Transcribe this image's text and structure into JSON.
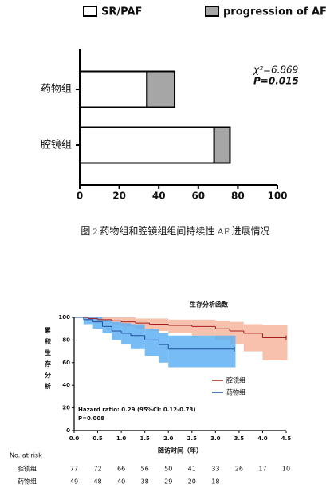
{
  "chart_data": [
    {
      "type": "bar",
      "orientation": "horizontal",
      "stacked": true,
      "categories": [
        "药物组",
        "腔镜组"
      ],
      "series": [
        {
          "name": "SR/PAF",
          "color": "#ffffff",
          "values": [
            34,
            68
          ]
        },
        {
          "name": "progression of AF",
          "color": "#a6a6a6",
          "values": [
            14,
            8
          ]
        }
      ],
      "xlim": [
        0,
        100
      ],
      "xticks": [
        0,
        20,
        40,
        60,
        80,
        100
      ],
      "annotations": [
        "χ²=6.869",
        "P=0.015"
      ],
      "caption": "图 2  药物组和腔镜组组间持续性 AF 进展情况"
    },
    {
      "type": "survival",
      "title": "生存分析函数",
      "y_label": "累积生存分析",
      "x_label": "随访时间（年）",
      "xlim": [
        0,
        4.5
      ],
      "xticks": [
        {
          "value": 0,
          "label": "0.0"
        },
        0.5,
        {
          "value": 1,
          "label": "1.0"
        },
        1.5,
        {
          "value": 2,
          "label": "2.0"
        },
        2.5,
        {
          "value": 3,
          "label": "3.0"
        },
        3.5,
        {
          "value": 4,
          "label": "4.0"
        },
        4.5
      ],
      "ylim": [
        0,
        100
      ],
      "yticks": [
        0,
        20,
        40,
        60,
        80,
        100
      ],
      "series": [
        {
          "name": "腔镜组",
          "color": "#a61c1c",
          "band_color": "#f6b6a0",
          "x": [
            0,
            0.3,
            0.5,
            0.8,
            1.0,
            1.3,
            1.6,
            2.0,
            2.5,
            3.0,
            3.3,
            3.6,
            4.0,
            4.5
          ],
          "values": [
            100,
            99,
            98,
            97,
            96,
            95,
            94,
            93,
            92,
            90,
            88,
            86,
            82,
            82
          ],
          "ci_lower": [
            100,
            98,
            96,
            94,
            92,
            90,
            88,
            86,
            84,
            80,
            76,
            70,
            62,
            62
          ],
          "ci_upper": [
            100,
            100,
            100,
            100,
            100,
            99,
            99,
            98,
            98,
            97,
            96,
            94,
            93,
            93
          ]
        },
        {
          "name": "药物组",
          "color": "#1f4e9c",
          "band_color": "#5fb0f2",
          "x": [
            0,
            0.2,
            0.4,
            0.6,
            0.8,
            1.0,
            1.2,
            1.5,
            1.8,
            2.0,
            3.4
          ],
          "values": [
            100,
            98,
            96,
            92,
            88,
            86,
            84,
            80,
            76,
            72,
            72
          ],
          "ci_lower": [
            100,
            94,
            90,
            86,
            80,
            76,
            72,
            66,
            60,
            56,
            56
          ],
          "ci_upper": [
            100,
            100,
            100,
            98,
            96,
            95,
            94,
            90,
            86,
            84,
            84
          ]
        }
      ],
      "annotations": [
        "Hazard ratio: 0.29 (95%CI: 0.12-0.73)",
        "P=0.008"
      ],
      "risk_table": {
        "title": "No. at risk",
        "rows": [
          {
            "name": "腔镜组",
            "values": [
              77,
              72,
              66,
              56,
              50,
              41,
              33,
              26,
              17,
              10
            ]
          },
          {
            "name": "药物组",
            "values": [
              49,
              48,
              40,
              38,
              29,
              20,
              18
            ]
          }
        ]
      }
    }
  ]
}
